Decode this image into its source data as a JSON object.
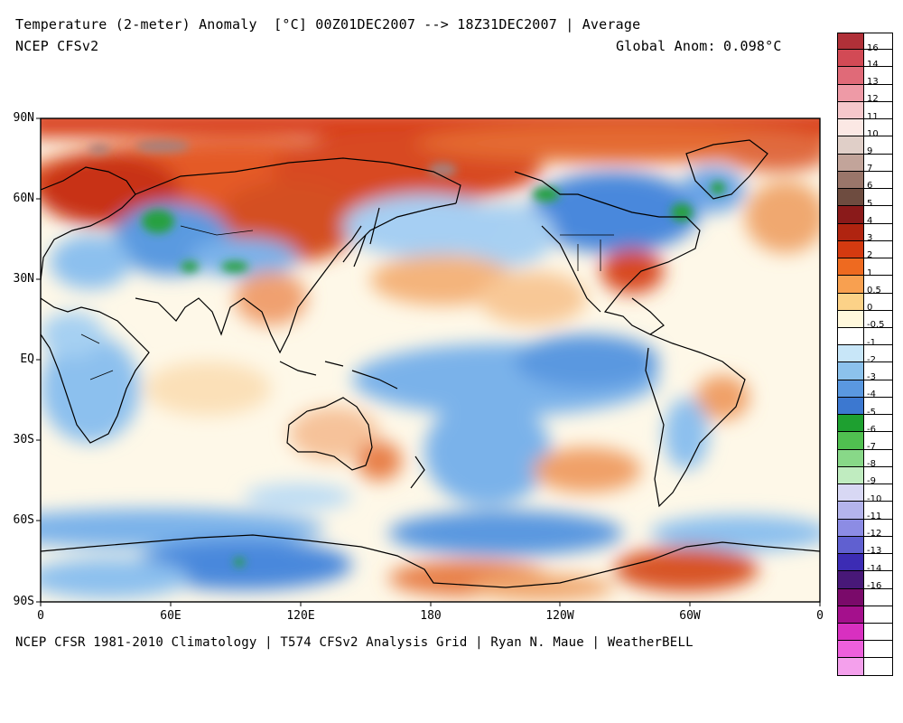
{
  "header": {
    "title": "Temperature (2-meter) Anomaly  [°C] 00Z01DEC2007 --> 18Z31DEC2007 | Average",
    "subtitle": "NCEP CFSv2",
    "global_anom_label": "Global Anom:",
    "global_anom_value": "0.098°C"
  },
  "footer": "NCEP CFSR 1981-2010 Climatology | T574 CFSv2 Analysis Grid | Ryan N. Maue | WeatherBELL",
  "map": {
    "lat_labels": [
      "90N",
      "60N",
      "30N",
      "EQ",
      "30S",
      "60S",
      "90S"
    ],
    "lon_labels": [
      "0",
      "60E",
      "120E",
      "180",
      "120W",
      "60W",
      "0"
    ]
  },
  "colorbar": {
    "labels": [
      "16",
      "14",
      "13",
      "12",
      "11",
      "10",
      "9",
      "7",
      "6",
      "5",
      "4",
      "3",
      "2",
      "1",
      "0.5",
      "0",
      "-0.5",
      "-1",
      "-2",
      "-3",
      "-4",
      "-5",
      "-6",
      "-7",
      "-8",
      "-9",
      "-10",
      "-11",
      "-12",
      "-13",
      "-14",
      "-16"
    ],
    "colors": [
      "#b03038",
      "#d24a55",
      "#e06a78",
      "#ee9aa6",
      "#f6c8cc",
      "#fbe8e4",
      "#e0cfc8",
      "#c2a49a",
      "#9a766a",
      "#6e4c40",
      "#8a1a1a",
      "#b02410",
      "#d43a10",
      "#ee6a20",
      "#f8a050",
      "#fcd288",
      "#fff8dc",
      "#ffffff",
      "#c8e6f8",
      "#8cc2ec",
      "#5a98e0",
      "#3c78d0",
      "#1ea030",
      "#50c050",
      "#88d888",
      "#c0ecc0",
      "#d8d8f4",
      "#b4b4ec",
      "#8c8ce4",
      "#6060d0",
      "#3c2cb4",
      "#481878",
      "#7a0a6a",
      "#a4108c",
      "#d830c0",
      "#ee60dc",
      "#f4a0ec"
    ]
  }
}
